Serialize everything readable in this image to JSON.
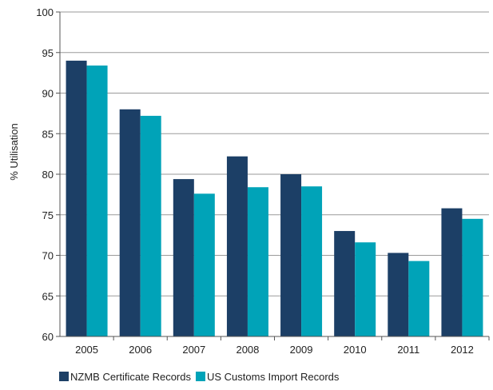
{
  "chart_data": {
    "type": "bar",
    "title": "",
    "xlabel": "",
    "ylabel": "% Utilisation",
    "ylim": [
      60,
      100
    ],
    "yticks": [
      60,
      65,
      70,
      75,
      80,
      85,
      90,
      95,
      100
    ],
    "grid": true,
    "legend_position": "bottom",
    "categories": [
      "2005",
      "2006",
      "2007",
      "2008",
      "2009",
      "2010",
      "2011",
      "2012"
    ],
    "series": [
      {
        "name": "NZMB Certificate Records",
        "color": "#1c3f66",
        "values": [
          94.0,
          88.0,
          79.4,
          82.2,
          80.0,
          73.0,
          70.3,
          75.8
        ]
      },
      {
        "name": "US Customs Import Records",
        "color": "#00a3b8",
        "values": [
          93.4,
          87.2,
          77.6,
          78.4,
          78.5,
          71.6,
          69.3,
          74.5
        ]
      }
    ]
  }
}
